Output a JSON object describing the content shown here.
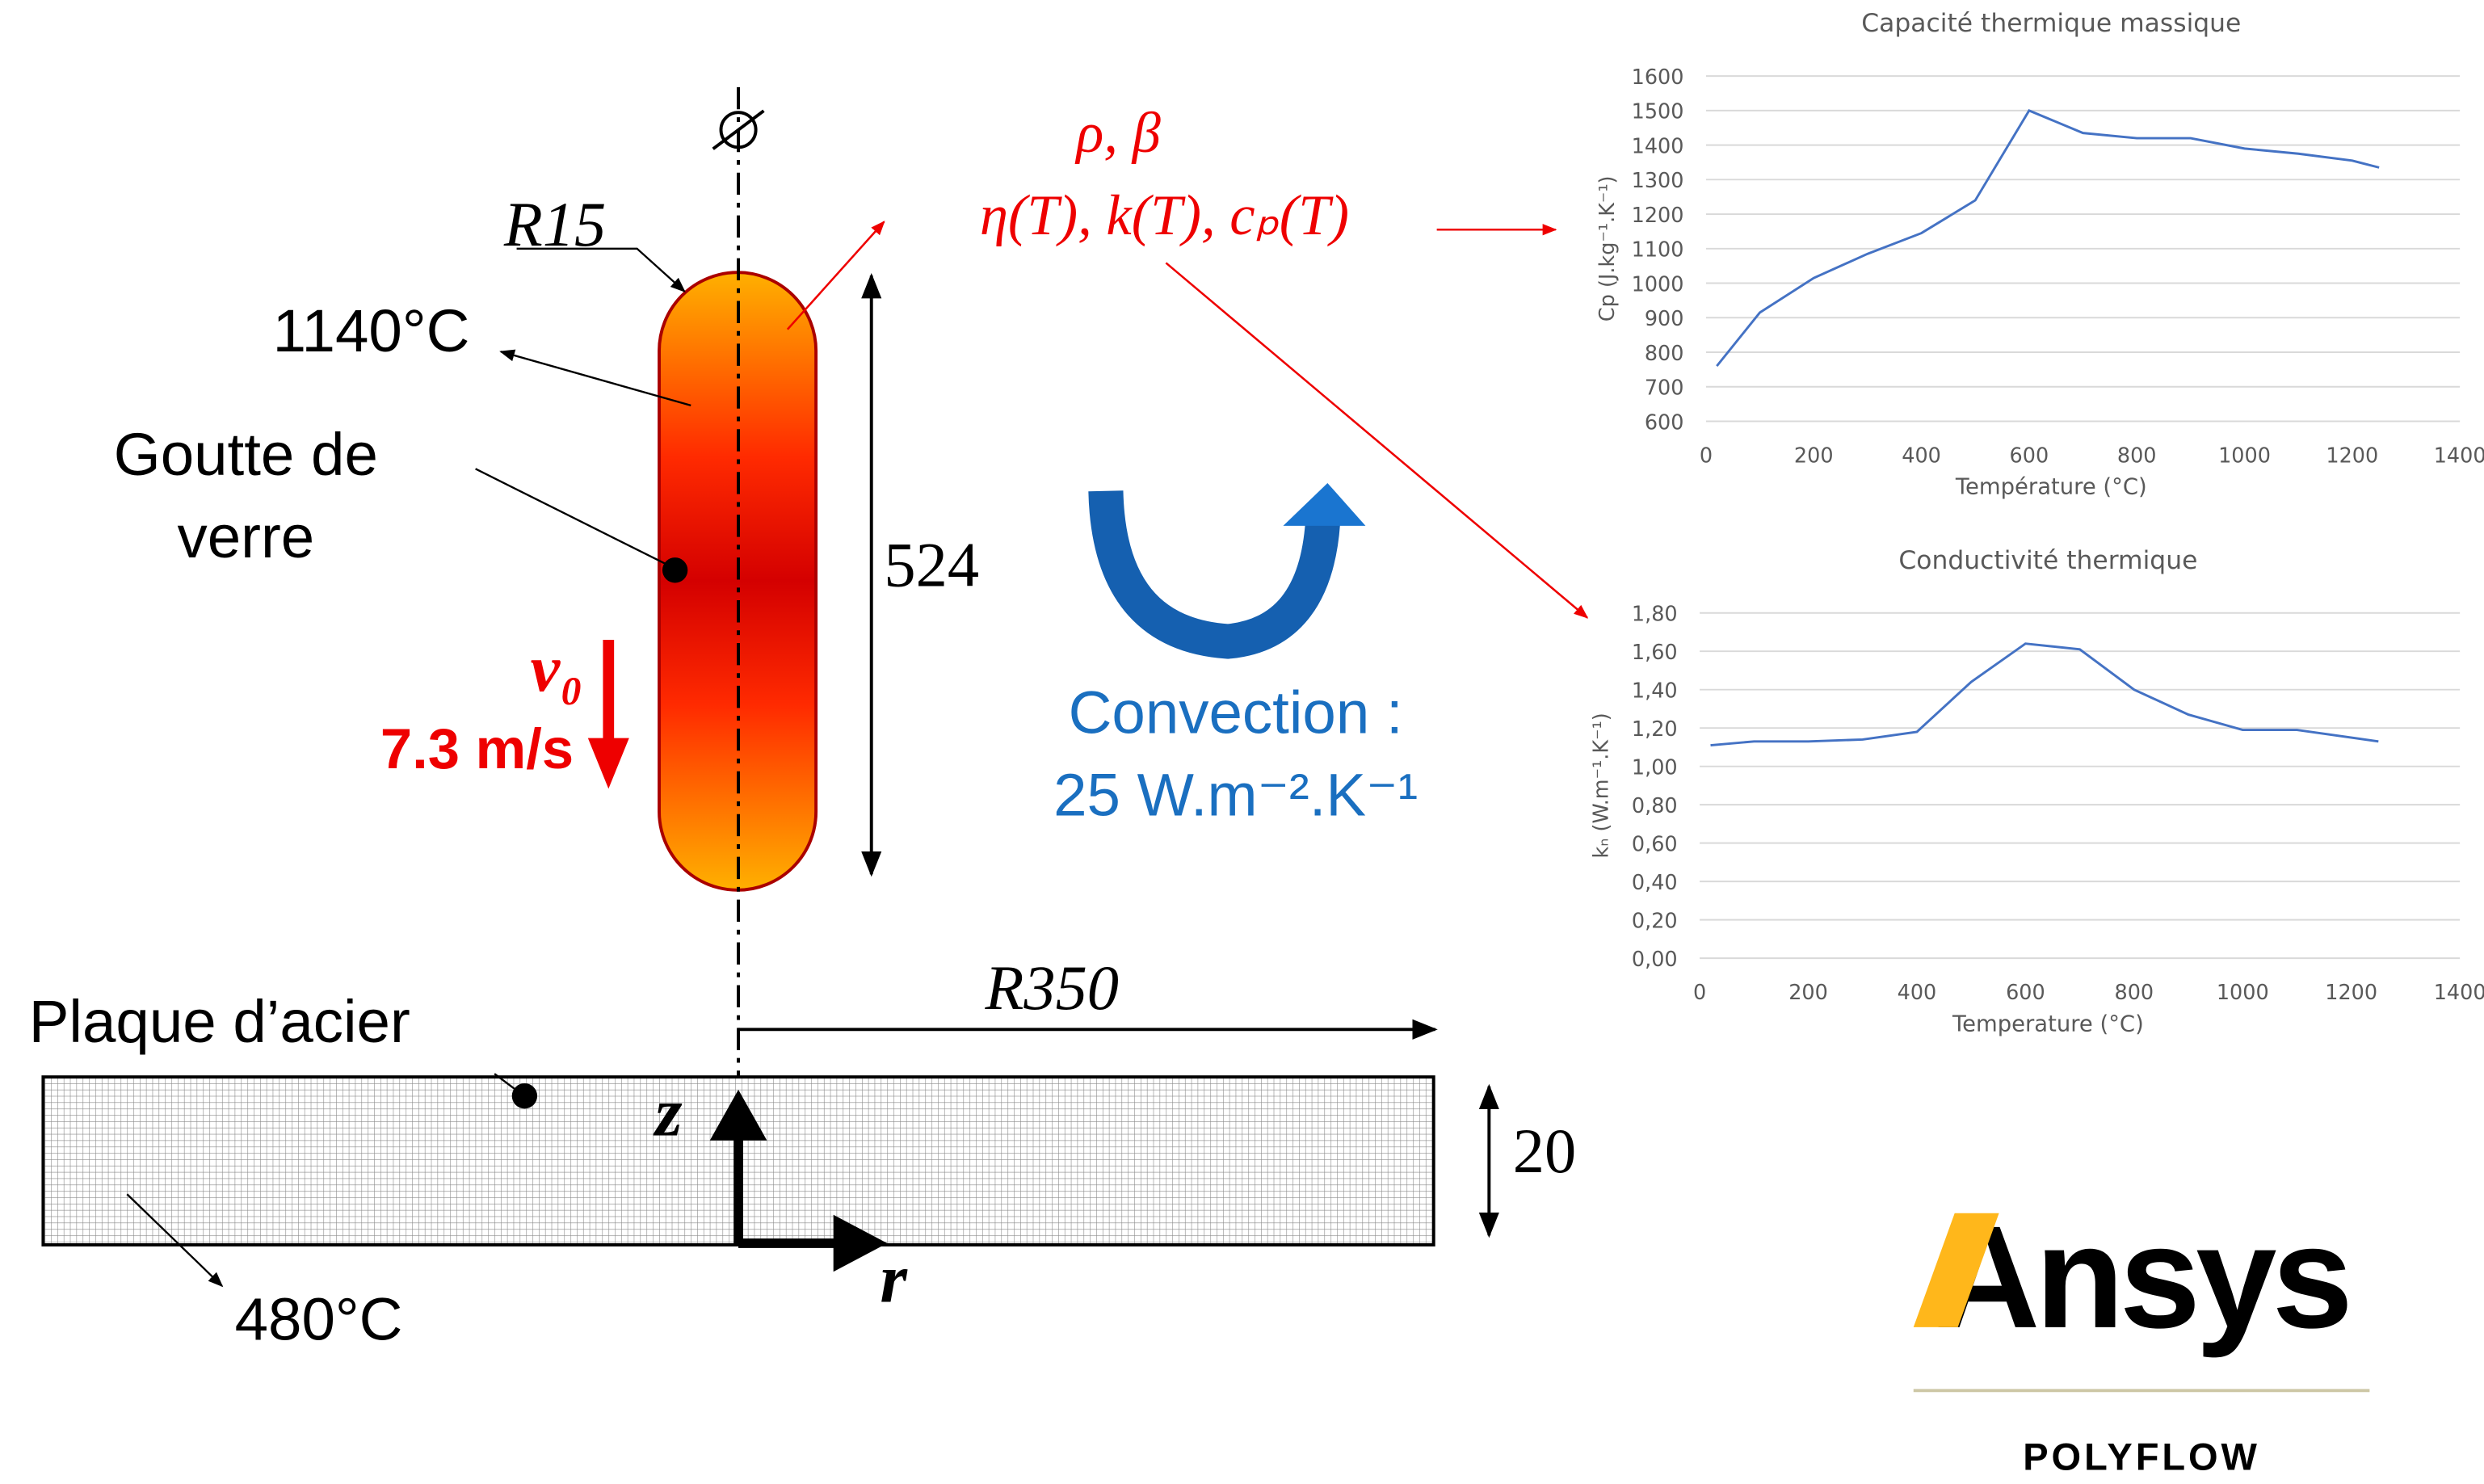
{
  "diagram": {
    "r15": "R15",
    "temp_drop": "1140°C",
    "drop_label_1": "Goutte de",
    "drop_label_2": "verre",
    "velocity_symbol": "v₀",
    "velocity": "7.3 m/s",
    "height": "524",
    "props_1": "ρ, β",
    "props_2": "η(T), k(T), cₚ(T)",
    "convection_1": "Convection :",
    "convection_2": "25 W.m⁻².K⁻¹",
    "r350": "R350",
    "plate_label": "Plaque d’acier",
    "temp_plate": "480°C",
    "axis_z": "z",
    "axis_r": "r",
    "thickness": "20",
    "logo": "Ansys",
    "logo_sub": "POLYFLOW"
  },
  "chart_data": [
    {
      "type": "line",
      "title": "Capacité thermique massique",
      "x_label": "Température (°C)",
      "y_label": "Cp (J.kg⁻¹.K⁻¹)",
      "x": [
        20,
        100,
        200,
        300,
        400,
        500,
        600,
        700,
        800,
        900,
        1000,
        1100,
        1200,
        1250
      ],
      "values": [
        760,
        915,
        1015,
        1085,
        1145,
        1240,
        1500,
        1435,
        1420,
        1420,
        1390,
        1375,
        1355,
        1335
      ],
      "color": "#4472c4",
      "grid": true,
      "xlim": [
        0,
        1400
      ],
      "xticks": [
        0,
        200,
        400,
        600,
        800,
        1000,
        1200,
        1400
      ],
      "ylim": [
        600,
        1600
      ],
      "yticks": [
        600,
        700,
        800,
        900,
        1000,
        1100,
        1200,
        1300,
        1400,
        1500,
        1600
      ]
    },
    {
      "type": "line",
      "title": "Conductivité thermique",
      "x_label": "Temperature (°C)",
      "y_label": "kₙ (W.m⁻¹.K⁻¹)",
      "x": [
        20,
        100,
        200,
        300,
        400,
        500,
        600,
        700,
        800,
        900,
        1000,
        1100,
        1250
      ],
      "values": [
        1.11,
        1.13,
        1.13,
        1.14,
        1.18,
        1.44,
        1.64,
        1.61,
        1.4,
        1.27,
        1.19,
        1.19,
        1.13
      ],
      "color": "#4472c4",
      "grid": true,
      "xlim": [
        0,
        1400
      ],
      "xticks": [
        0,
        200,
        400,
        600,
        800,
        1000,
        1200,
        1400
      ],
      "ylim": [
        0,
        1.8
      ],
      "yticks": [
        {
          "value": 0,
          "label": "0,00"
        },
        {
          "value": 0.2,
          "label": "0,20"
        },
        {
          "value": 0.4,
          "label": "0,40"
        },
        {
          "value": 0.6,
          "label": "0,60"
        },
        {
          "value": 0.8,
          "label": "0,80"
        },
        {
          "value": 1.0,
          "label": "1,00"
        },
        {
          "value": 1.2,
          "label": "1,20"
        },
        {
          "value": 1.4,
          "label": "1,40"
        },
        {
          "value": 1.6,
          "label": "1,60"
        },
        {
          "value": 1.8,
          "label": "1,80"
        }
      ]
    }
  ]
}
